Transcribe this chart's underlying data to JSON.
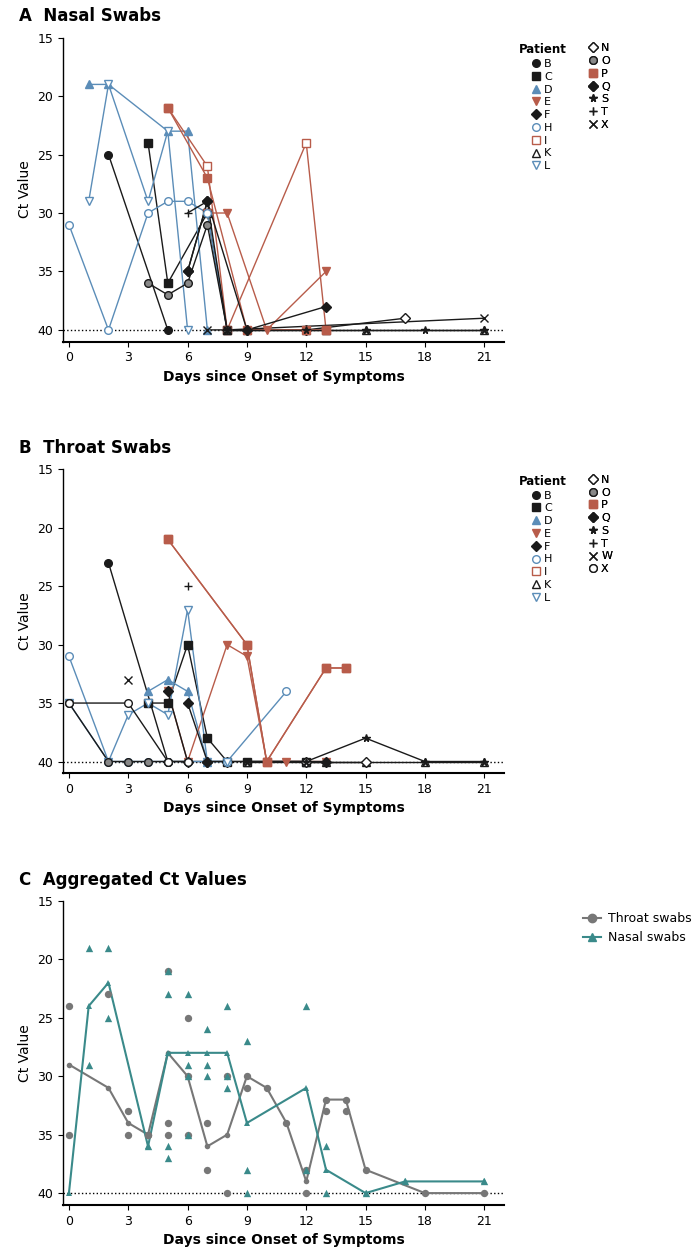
{
  "panel_A_title": "A  Nasal Swabs",
  "panel_B_title": "B  Throat Swabs",
  "panel_C_title": "C  Aggregated Ct Values",
  "xlabel": "Days since Onset of Symptoms",
  "ylabel": "Ct Value",
  "ylim_bottom": 41,
  "ylim_top": 15,
  "yticks": [
    15,
    20,
    25,
    30,
    35,
    40
  ],
  "xlim": [
    -0.3,
    22
  ],
  "xticks": [
    0,
    3,
    6,
    9,
    12,
    15,
    18,
    21
  ],
  "dotted_line_y": 40,
  "BLACK": "#1a1a1a",
  "BLUE": "#5b8db8",
  "RED": "#b85c4a",
  "TEAL": "#3a8a8a",
  "GRAY": "#777777",
  "nasal_patients": {
    "B": {
      "color": "#1a1a1a",
      "marker": "o",
      "mfc": "#1a1a1a",
      "days": [
        2,
        5
      ],
      "ct": [
        25,
        40
      ]
    },
    "C": {
      "color": "#1a1a1a",
      "marker": "s",
      "mfc": "#1a1a1a",
      "days": [
        4,
        5,
        7,
        8
      ],
      "ct": [
        24,
        36,
        30,
        40
      ]
    },
    "D": {
      "color": "#5b8db8",
      "marker": "^",
      "mfc": "#5b8db8",
      "days": [
        1,
        2,
        5,
        6,
        7
      ],
      "ct": [
        19,
        19,
        23,
        23,
        40
      ]
    },
    "E": {
      "color": "#b85c4a",
      "marker": "v",
      "mfc": "#b85c4a",
      "days": [
        7,
        8,
        10,
        13
      ],
      "ct": [
        30,
        30,
        40,
        35
      ]
    },
    "F": {
      "color": "#1a1a1a",
      "marker": "D",
      "mfc": "#1a1a1a",
      "days": [
        6,
        7
      ],
      "ct": [
        35,
        29
      ]
    },
    "H": {
      "color": "#5b8db8",
      "marker": "o",
      "mfc": "white",
      "days": [
        0,
        2,
        4,
        5,
        6,
        7,
        8
      ],
      "ct": [
        31,
        40,
        30,
        29,
        29,
        30,
        40
      ]
    },
    "I": {
      "color": "#b85c4a",
      "marker": "s",
      "mfc": "white",
      "days": [
        5,
        7,
        8,
        12,
        13
      ],
      "ct": [
        21,
        26,
        40,
        24,
        40
      ]
    },
    "K": {
      "color": "#1a1a1a",
      "marker": "^",
      "mfc": "white",
      "days": [
        8,
        9,
        12,
        13,
        15,
        21
      ],
      "ct": [
        40,
        40,
        40,
        40,
        40,
        40
      ]
    },
    "L": {
      "color": "#5b8db8",
      "marker": "v",
      "mfc": "white",
      "days": [
        1,
        2,
        4,
        5,
        6
      ],
      "ct": [
        29,
        19,
        29,
        23,
        40
      ]
    },
    "N": {
      "color": "#1a1a1a",
      "marker": "D",
      "mfc": "white",
      "days": [
        9,
        12,
        17
      ],
      "ct": [
        40,
        40,
        39
      ]
    },
    "O": {
      "color": "#1a1a1a",
      "marker": "o",
      "mfc": "#888888",
      "days": [
        4,
        5,
        6,
        7,
        8,
        9
      ],
      "ct": [
        36,
        37,
        36,
        31,
        40,
        40
      ]
    },
    "P": {
      "color": "#b85c4a",
      "marker": "s",
      "mfc": "#b85c4a",
      "days": [
        5,
        7,
        9,
        12,
        13
      ],
      "ct": [
        21,
        27,
        40,
        40,
        40
      ]
    },
    "Q": {
      "color": "#1a1a1a",
      "marker": "D",
      "mfc": "#1a1a1a",
      "days": [
        6,
        7,
        9,
        13
      ],
      "ct": [
        35,
        29,
        40,
        38
      ]
    },
    "S": {
      "color": "#1a1a1a",
      "marker": "*",
      "mfc": "#1a1a1a",
      "days": [
        8,
        9,
        12,
        15,
        18,
        21
      ],
      "ct": [
        40,
        40,
        40,
        40,
        40,
        40
      ]
    },
    "T": {
      "color": "#1a1a1a",
      "marker": "+",
      "mfc": "#1a1a1a",
      "days": [
        6,
        7,
        8
      ],
      "ct": [
        30,
        29,
        40
      ]
    },
    "X": {
      "color": "#1a1a1a",
      "marker": "x",
      "mfc": "#1a1a1a",
      "days": [
        7,
        8,
        21
      ],
      "ct": [
        40,
        40,
        39
      ]
    }
  },
  "throat_patients": {
    "B": {
      "color": "#1a1a1a",
      "marker": "o",
      "mfc": "#1a1a1a",
      "days": [
        2,
        5
      ],
      "ct": [
        23,
        40
      ]
    },
    "C": {
      "color": "#1a1a1a",
      "marker": "s",
      "mfc": "#1a1a1a",
      "days": [
        4,
        5,
        6,
        7,
        8,
        9,
        12
      ],
      "ct": [
        35,
        35,
        30,
        38,
        40,
        40,
        40
      ]
    },
    "D": {
      "color": "#5b8db8",
      "marker": "^",
      "mfc": "#5b8db8",
      "days": [
        4,
        5,
        6,
        7
      ],
      "ct": [
        34,
        33,
        34,
        40
      ]
    },
    "E": {
      "color": "#b85c4a",
      "marker": "v",
      "mfc": "#b85c4a",
      "days": [
        5,
        6,
        8,
        9,
        10,
        11,
        13
      ],
      "ct": [
        34,
        40,
        30,
        31,
        40,
        40,
        40
      ]
    },
    "F": {
      "color": "#1a1a1a",
      "marker": "D",
      "mfc": "#1a1a1a",
      "days": [
        5,
        6,
        7,
        8
      ],
      "ct": [
        34,
        40,
        40,
        40
      ]
    },
    "H": {
      "color": "#5b8db8",
      "marker": "o",
      "mfc": "white",
      "days": [
        0,
        2,
        3,
        4,
        5,
        6,
        7,
        8,
        11
      ],
      "ct": [
        31,
        40,
        40,
        40,
        40,
        40,
        40,
        40,
        34
      ]
    },
    "I": {
      "color": "#b85c4a",
      "marker": "s",
      "mfc": "white",
      "days": [
        5,
        9,
        10,
        13,
        14
      ],
      "ct": [
        21,
        30,
        40,
        32,
        32
      ]
    },
    "K": {
      "color": "#1a1a1a",
      "marker": "^",
      "mfc": "white",
      "days": [
        9,
        12,
        13,
        15,
        18,
        21
      ],
      "ct": [
        40,
        40,
        40,
        40,
        40,
        40
      ]
    },
    "L": {
      "color": "#5b8db8",
      "marker": "v",
      "mfc": "white",
      "days": [
        0,
        2,
        3,
        4,
        5,
        6,
        7,
        8
      ],
      "ct": [
        35,
        40,
        36,
        35,
        36,
        27,
        40,
        40
      ]
    },
    "N": {
      "color": "#1a1a1a",
      "marker": "D",
      "mfc": "white",
      "days": [
        12,
        15
      ],
      "ct": [
        40,
        40
      ]
    },
    "O": {
      "color": "#1a1a1a",
      "marker": "o",
      "mfc": "#888888",
      "days": [
        0,
        2,
        3,
        4,
        5,
        6
      ],
      "ct": [
        35,
        40,
        40,
        40,
        40,
        40
      ]
    },
    "P": {
      "color": "#b85c4a",
      "marker": "s",
      "mfc": "#b85c4a",
      "days": [
        5,
        9,
        10,
        13,
        14
      ],
      "ct": [
        21,
        30,
        40,
        32,
        32
      ]
    },
    "Q": {
      "color": "#1a1a1a",
      "marker": "D",
      "mfc": "#1a1a1a",
      "days": [
        6,
        7,
        13
      ],
      "ct": [
        35,
        40,
        40
      ]
    },
    "S": {
      "color": "#1a1a1a",
      "marker": "*",
      "mfc": "#1a1a1a",
      "days": [
        9,
        12,
        15,
        18,
        21
      ],
      "ct": [
        40,
        40,
        38,
        40,
        40
      ]
    },
    "T": {
      "color": "#1a1a1a",
      "marker": "+",
      "mfc": "#1a1a1a",
      "days": [
        6
      ],
      "ct": [
        25
      ]
    },
    "W": {
      "color": "#1a1a1a",
      "marker": "x",
      "mfc": "#1a1a1a",
      "days": [
        3
      ],
      "ct": [
        33
      ]
    },
    "X": {
      "color": "#1a1a1a",
      "marker": "o",
      "mfc": "white",
      "days": [
        0,
        3,
        5,
        6
      ],
      "ct": [
        35,
        35,
        40,
        40
      ]
    }
  },
  "agg_throat_scatter_x": [
    0,
    0,
    2,
    3,
    3,
    4,
    4,
    5,
    5,
    5,
    6,
    6,
    6,
    7,
    7,
    8,
    8,
    9,
    9,
    10,
    11,
    12,
    12,
    13,
    13,
    14,
    14,
    15,
    18,
    21
  ],
  "agg_throat_scatter_y": [
    24,
    35,
    23,
    33,
    35,
    35,
    35,
    21,
    34,
    35,
    25,
    30,
    35,
    34,
    38,
    30,
    40,
    30,
    31,
    31,
    34,
    38,
    40,
    32,
    33,
    32,
    33,
    38,
    40,
    40
  ],
  "agg_nasal_scatter_x": [
    1,
    1,
    2,
    2,
    4,
    5,
    5,
    5,
    5,
    6,
    6,
    6,
    6,
    7,
    7,
    7,
    8,
    8,
    8,
    9,
    9,
    9,
    12,
    12,
    13,
    13,
    15,
    17,
    21
  ],
  "agg_nasal_scatter_y": [
    19,
    29,
    19,
    25,
    36,
    21,
    23,
    36,
    37,
    23,
    29,
    30,
    35,
    26,
    29,
    30,
    24,
    30,
    31,
    27,
    38,
    40,
    24,
    38,
    36,
    40,
    40,
    39,
    39
  ],
  "agg_throat_line_x": [
    0,
    2,
    3,
    4,
    5,
    6,
    7,
    8,
    9,
    10,
    11,
    12,
    13,
    14,
    15,
    18,
    21
  ],
  "agg_throat_line_y": [
    29,
    31,
    34,
    35,
    28,
    30,
    36,
    35,
    30,
    31,
    34,
    39,
    32,
    32,
    38,
    40,
    40
  ],
  "agg_nasal_line_x": [
    0,
    1,
    2,
    4,
    5,
    6,
    7,
    8,
    9,
    12,
    13,
    15,
    17,
    21
  ],
  "agg_nasal_line_y": [
    40,
    24,
    22,
    36,
    28,
    28,
    28,
    28,
    34,
    31,
    38,
    40,
    39,
    39
  ],
  "legend_A_left": [
    [
      "B",
      "#1a1a1a",
      "o",
      "#1a1a1a"
    ],
    [
      "C",
      "#1a1a1a",
      "s",
      "#1a1a1a"
    ],
    [
      "D",
      "#5b8db8",
      "^",
      "#5b8db8"
    ],
    [
      "E",
      "#b85c4a",
      "v",
      "#b85c4a"
    ],
    [
      "F",
      "#1a1a1a",
      "D",
      "#1a1a1a"
    ],
    [
      "H",
      "#5b8db8",
      "o",
      "white"
    ],
    [
      "I",
      "#b85c4a",
      "s",
      "white"
    ],
    [
      "K",
      "#1a1a1a",
      "^",
      "white"
    ],
    [
      "L",
      "#5b8db8",
      "v",
      "white"
    ]
  ],
  "legend_A_right": [
    [
      "N",
      "#1a1a1a",
      "D",
      "white"
    ],
    [
      "O",
      "#1a1a1a",
      "o",
      "#888888"
    ],
    [
      "P",
      "#b85c4a",
      "s",
      "#b85c4a"
    ],
    [
      "Q",
      "#1a1a1a",
      "D",
      "#1a1a1a"
    ],
    [
      "S",
      "#1a1a1a",
      "*",
      "#1a1a1a"
    ],
    [
      "T",
      "#1a1a1a",
      "+",
      "#1a1a1a"
    ],
    [
      "X",
      "#1a1a1a",
      "x",
      "#1a1a1a"
    ]
  ],
  "legend_B_left": [
    [
      "B",
      "#1a1a1a",
      "o",
      "#1a1a1a"
    ],
    [
      "C",
      "#1a1a1a",
      "s",
      "#1a1a1a"
    ],
    [
      "D",
      "#5b8db8",
      "^",
      "#5b8db8"
    ],
    [
      "E",
      "#b85c4a",
      "v",
      "#b85c4a"
    ],
    [
      "F",
      "#1a1a1a",
      "D",
      "#1a1a1a"
    ],
    [
      "H",
      "#5b8db8",
      "o",
      "white"
    ],
    [
      "I",
      "#b85c4a",
      "s",
      "white"
    ],
    [
      "K",
      "#1a1a1a",
      "^",
      "white"
    ],
    [
      "L",
      "#5b8db8",
      "v",
      "white"
    ]
  ],
  "legend_B_right": [
    [
      "N",
      "#1a1a1a",
      "D",
      "white"
    ],
    [
      "O",
      "#1a1a1a",
      "o",
      "#888888"
    ],
    [
      "P",
      "#b85c4a",
      "s",
      "#b85c4a"
    ],
    [
      "Q",
      "#1a1a1a",
      "D",
      "#1a1a1a"
    ],
    [
      "S",
      "#1a1a1a",
      "*",
      "#1a1a1a"
    ],
    [
      "T",
      "#1a1a1a",
      "+",
      "#1a1a1a"
    ],
    [
      "W",
      "#1a1a1a",
      "x",
      "#1a1a1a"
    ],
    [
      "X",
      "#1a1a1a",
      "o",
      "white"
    ]
  ]
}
